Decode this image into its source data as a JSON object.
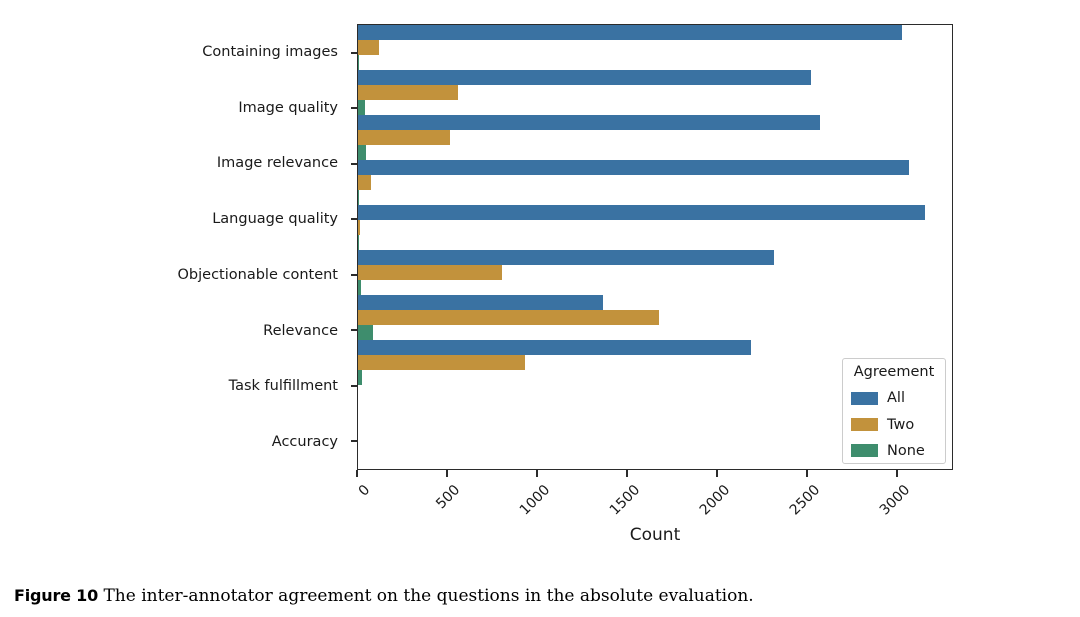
{
  "chart_data": {
    "type": "bar",
    "orientation": "horizontal",
    "xlabel": "Count",
    "categories": [
      "Containing images",
      "Image quality",
      "Image relevance",
      "Language quality",
      "Objectionable content",
      "Relevance",
      "Task fulfillment",
      "Accuracy"
    ],
    "series": [
      {
        "name": "All",
        "color": "#3a72a2",
        "values": [
          3030,
          2525,
          2575,
          3070,
          3160,
          2320,
          1365,
          2190
        ]
      },
      {
        "name": "Two",
        "color": "#c2923c",
        "values": [
          115,
          560,
          510,
          75,
          10,
          800,
          1680,
          930
        ]
      },
      {
        "name": "None",
        "color": "#3e8d6d",
        "values": [
          5,
          40,
          45,
          8,
          2,
          15,
          85,
          20
        ]
      }
    ],
    "xlim": [
      0,
      3310
    ],
    "xticks": [
      0,
      500,
      1000,
      1500,
      2000,
      2500,
      3000
    ],
    "grid": false,
    "legend": {
      "title": "Agreement",
      "position": "lower right"
    }
  },
  "caption": {
    "label": "Figure 10",
    "text": " The inter-annotator agreement on the questions in the absolute evaluation."
  }
}
